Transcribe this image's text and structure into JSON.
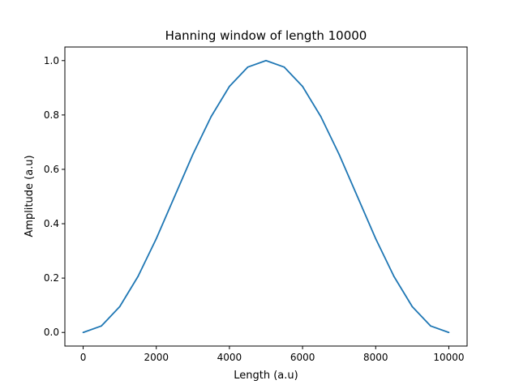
{
  "chart_data": {
    "type": "line",
    "title": "Hanning window of length 10000",
    "xlabel": "Length (a.u)",
    "ylabel": "Amplitude (a.u)",
    "xlim": [
      -500,
      10500
    ],
    "ylim": [
      -0.05,
      1.05
    ],
    "grid": false,
    "x_ticks": [
      0,
      2000,
      4000,
      6000,
      8000,
      10000
    ],
    "x_tick_labels": [
      "0",
      "2000",
      "4000",
      "6000",
      "8000",
      "10000"
    ],
    "y_ticks": [
      0.0,
      0.2,
      0.4,
      0.6,
      0.8,
      1.0
    ],
    "y_tick_labels": [
      "0.0",
      "0.2",
      "0.4",
      "0.6",
      "0.8",
      "1.0"
    ],
    "series": [
      {
        "color": "#1f77b4",
        "x": [
          0,
          500,
          1000,
          1500,
          2000,
          2500,
          3000,
          3500,
          4000,
          4500,
          5000,
          5500,
          6000,
          6500,
          7000,
          7500,
          8000,
          8500,
          9000,
          9500,
          10000
        ],
        "y": [
          0.0,
          0.024,
          0.095,
          0.206,
          0.345,
          0.5,
          0.655,
          0.794,
          0.905,
          0.976,
          1.0,
          0.976,
          0.905,
          0.794,
          0.655,
          0.5,
          0.345,
          0.206,
          0.095,
          0.024,
          0.0
        ]
      }
    ]
  }
}
